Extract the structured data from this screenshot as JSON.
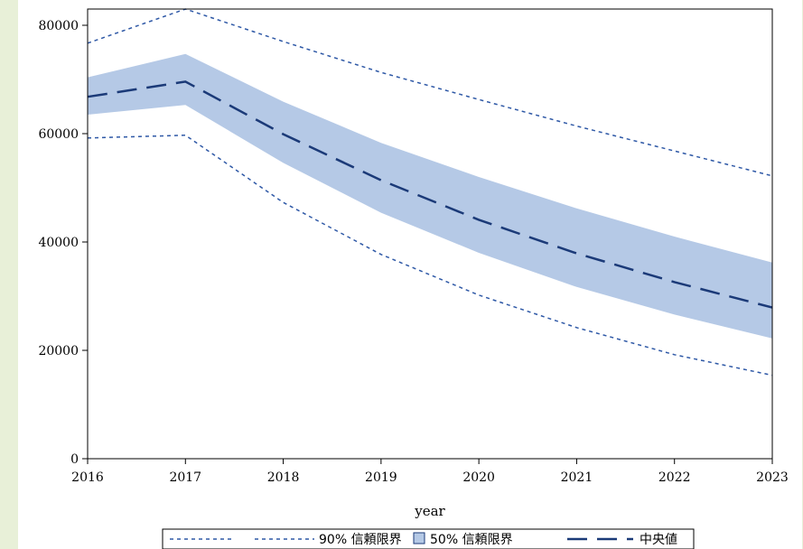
{
  "chart_data": {
    "type": "line",
    "title": "",
    "xlabel": "year",
    "ylabel": "",
    "x": [
      2016,
      2017,
      2018,
      2019,
      2020,
      2021,
      2022,
      2023
    ],
    "xlim": [
      2016,
      2023
    ],
    "ylim": [
      0,
      83000
    ],
    "x_ticks": [
      "2016",
      "2017",
      "2018",
      "2019",
      "2020",
      "2021",
      "2022",
      "2023"
    ],
    "y_ticks": [
      "0",
      "20000",
      "40000",
      "60000",
      "80000"
    ],
    "grid": false,
    "legend_position": "bottom",
    "series": [
      {
        "name": "90% 信頼限界",
        "kind": "band-lines",
        "style": "dotted",
        "color": "#2e58a6",
        "upper": [
          76700,
          83000,
          77000,
          71300,
          66300,
          61400,
          56800,
          52200
        ],
        "lower": [
          59200,
          59700,
          47300,
          37700,
          30200,
          24200,
          19200,
          15400
        ]
      },
      {
        "name": "50% 信頼限界",
        "kind": "band",
        "color": "#b5c9e6",
        "upper": [
          70400,
          74700,
          65900,
          58300,
          52000,
          46200,
          41000,
          36200
        ],
        "lower": [
          63500,
          65300,
          54600,
          45400,
          38000,
          31700,
          26600,
          22200
        ]
      },
      {
        "name": "中央値",
        "kind": "line",
        "style": "dashed",
        "color": "#1b3a78",
        "values": [
          66800,
          69600,
          59900,
          51400,
          44100,
          37900,
          32600,
          27900
        ]
      }
    ]
  }
}
